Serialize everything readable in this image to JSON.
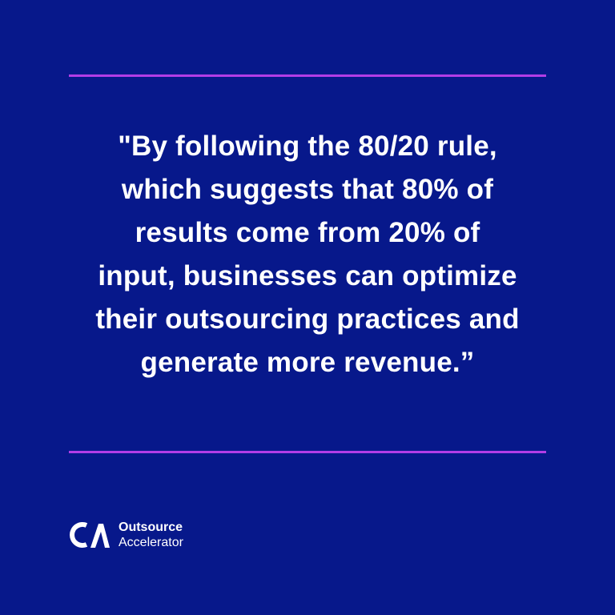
{
  "quote": {
    "lines": [
      "\"By following the 80/20 rule,",
      "which suggests that 80% of",
      "results come from 20% of",
      "input, businesses can optimize",
      "their outsourcing practices and",
      "generate more revenue.”"
    ]
  },
  "brand": {
    "name": "Outsource",
    "subtitle": "Accelerator",
    "logo_icon": "ca-monogram-icon"
  },
  "colors": {
    "background": "#07188b",
    "accent_rule": "#b33de6",
    "text": "#ffffff"
  }
}
